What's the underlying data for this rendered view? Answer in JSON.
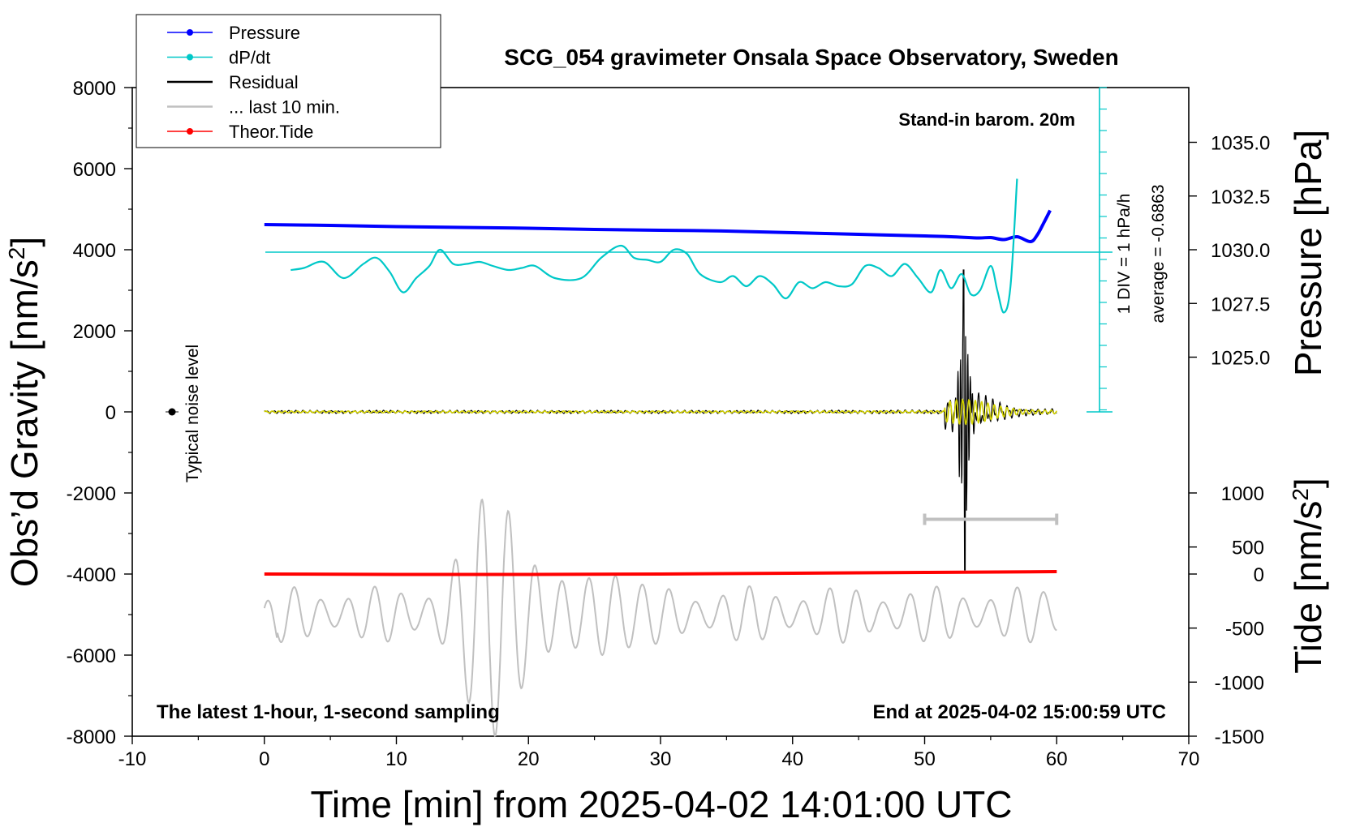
{
  "chart_data": {
    "type": "line",
    "title": "SCG_054 gravimeter Onsala Space Observatory, Sweden",
    "xlabel": "Time [min] from 2025-04-02 14:01:00 UTC",
    "ylabel": "Obs’d Gravity [nm/s",
    "ylabel_sup": "2",
    "ylabel_close": "]",
    "xlim": [
      -10,
      70
    ],
    "ylim": [
      -8000,
      8000
    ],
    "x_ticks": [
      -10,
      0,
      10,
      20,
      30,
      40,
      50,
      60,
      70
    ],
    "y_ticks": [
      8000,
      6000,
      4000,
      2000,
      0,
      -2000,
      -4000,
      -6000,
      -8000
    ],
    "right_axis_pressure": {
      "label": "Pressure [hPa]",
      "ticks": [
        "1035.0",
        "1032.5",
        "1030.0",
        "1027.5",
        "1025.0"
      ],
      "tick_values": [
        1035.0,
        1032.5,
        1030.0,
        1027.5,
        1025.0
      ],
      "gravity_equivalent": [
        6650,
        5325,
        4000,
        2675,
        1350
      ]
    },
    "right_axis_tide": {
      "label": "Tide [nm/s",
      "label_sup": "2",
      "label_close": "]",
      "ticks": [
        "1000",
        "500",
        "0",
        "-500",
        "-1000",
        "-1500"
      ],
      "tick_values": [
        1000,
        500,
        0,
        -500,
        -1000,
        -1500
      ],
      "gravity_equivalent": [
        -2000,
        -3333,
        -4000,
        -5333,
        -6666,
        -8000
      ]
    },
    "legend": [
      {
        "label": "Pressure",
        "color": "#0000ff",
        "marker": true
      },
      {
        "label": "dP/dt",
        "color": "#00c8c8",
        "marker": true
      },
      {
        "label": "Residual",
        "color": "#000000",
        "marker": false
      },
      {
        "label": "... last 10 min.",
        "color": "#c0c0c0",
        "marker": false
      },
      {
        "label": "Theor.Tide",
        "color": "#ff0000",
        "marker": true
      }
    ],
    "annotations": {
      "stand_in": "Stand-in barom. 20m",
      "div_label": "1 DIV = 1 hPa/h",
      "average_label": "average = -0.6863",
      "noise_label": "Typical noise level",
      "bottom_left": "The latest 1-hour, 1-second sampling",
      "bottom_right": "End at 2025-04-02 15:00:59 UTC"
    },
    "series": [
      {
        "name": "Pressure",
        "color": "#0000ff",
        "x": [
          0,
          5,
          10,
          15,
          20,
          25,
          30,
          35,
          40,
          45,
          50,
          52,
          54,
          55,
          56,
          57,
          58,
          58.5,
          59,
          59.5
        ],
        "y": [
          4620,
          4600,
          4570,
          4550,
          4530,
          4500,
          4480,
          4460,
          4420,
          4380,
          4340,
          4320,
          4290,
          4300,
          4250,
          4320,
          4200,
          4350,
          4650,
          4970
        ]
      },
      {
        "name": "dP/dt",
        "color": "#00c8c8",
        "x": [
          2,
          3,
          4.5,
          6,
          7.5,
          8.5,
          9.5,
          10.5,
          11.5,
          12.5,
          13.3,
          14.3,
          15.3,
          16.3,
          17.3,
          18.5,
          19.5,
          20.5,
          22,
          24,
          25.5,
          27,
          28,
          29,
          30,
          31,
          32,
          33,
          34.5,
          35.5,
          36.5,
          37.5,
          38.5,
          39.5,
          40.5,
          41.5,
          42.5,
          43.5,
          44.5,
          45.5,
          46.5,
          47.5,
          48.5,
          49.5,
          50.5,
          51.2,
          52,
          52.8,
          53.5,
          54.2,
          55,
          55.5,
          56,
          56.5,
          57
        ],
        "y": [
          3500,
          3550,
          3700,
          3300,
          3650,
          3800,
          3450,
          2950,
          3300,
          3600,
          4000,
          3650,
          3650,
          3700,
          3600,
          3500,
          3550,
          3600,
          3300,
          3300,
          3800,
          4100,
          3800,
          3750,
          3700,
          4000,
          3900,
          3400,
          3200,
          3350,
          3100,
          3350,
          3150,
          2800,
          3200,
          3050,
          3200,
          3100,
          3150,
          3600,
          3550,
          3350,
          3650,
          3300,
          2950,
          3500,
          3050,
          3400,
          2900,
          3000,
          3600,
          3000,
          2450,
          3100,
          5750
        ]
      },
      {
        "name": "Theor.Tide",
        "color": "#ff0000",
        "x": [
          0,
          10,
          20,
          30,
          40,
          50,
          60
        ],
        "y": [
          -4000,
          -4010,
          -4010,
          -4000,
          -3980,
          -3960,
          -3940
        ]
      }
    ],
    "residual": {
      "name": "Residual",
      "color": "#000000",
      "x_range": [
        0,
        60
      ],
      "amplitude_note": "spikes near 53 min reaching about 3500 and -3900"
    },
    "last_10_min": {
      "name": "... last 10 min.",
      "color": "#c0c0c0",
      "x_range": [
        0,
        60
      ],
      "baseline": -5000,
      "x_span_marker": [
        50,
        60
      ],
      "marker_y": -2650
    },
    "noise_level": {
      "x": -7,
      "y": 0
    }
  }
}
